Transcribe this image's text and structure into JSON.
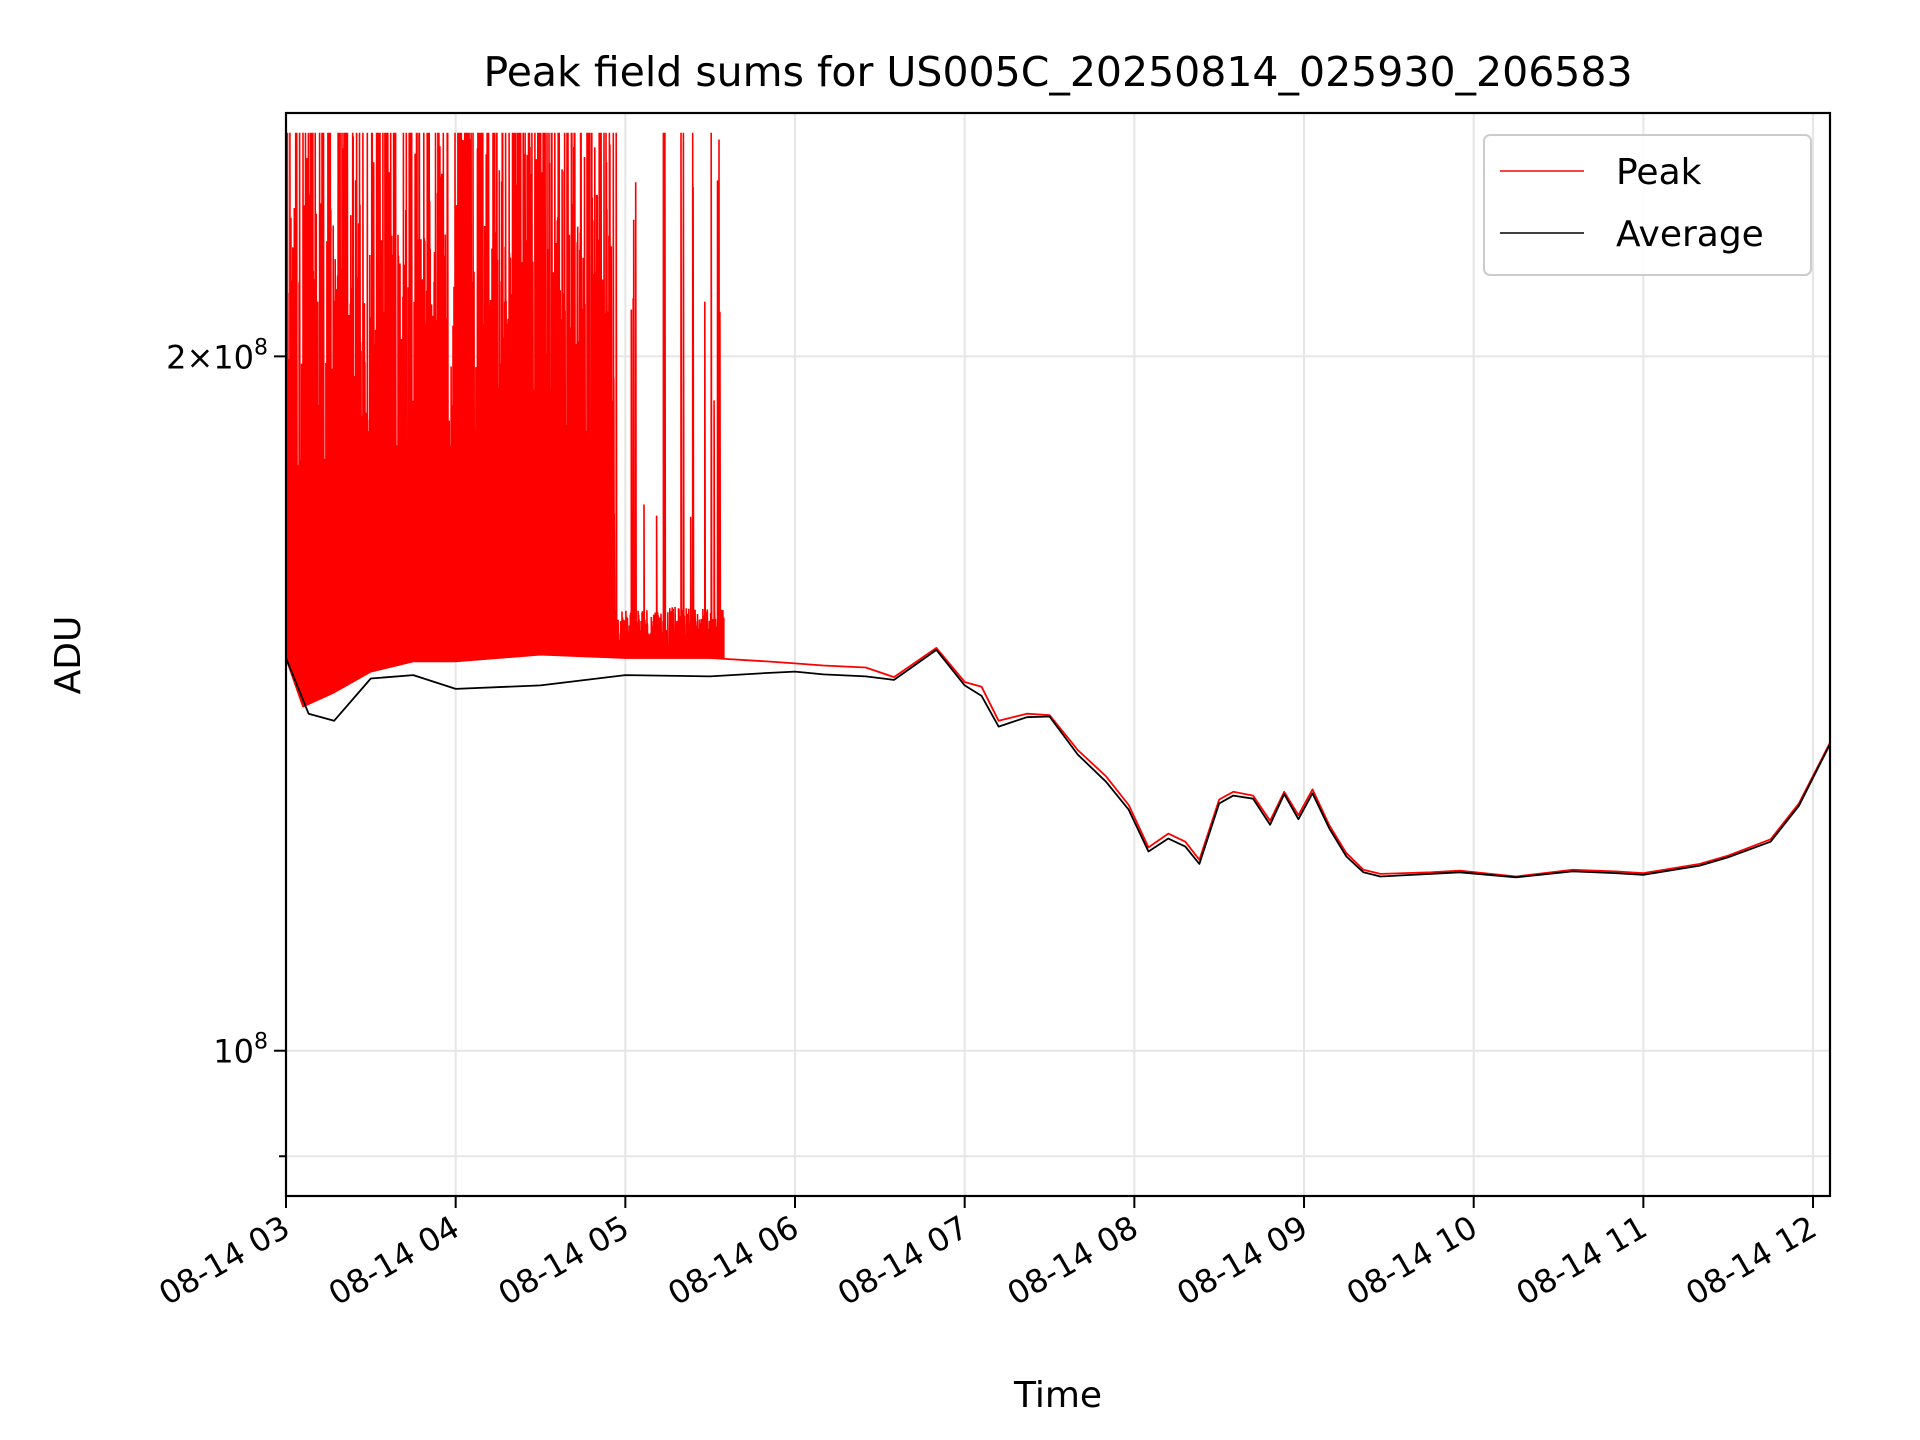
{
  "chart_data": {
    "type": "line",
    "title": "Peak field sums for US005C_20250814_025930_206583",
    "xlabel": "Time",
    "ylabel": "ADU",
    "yscale": "log",
    "grid": true,
    "legend_position": "top-right",
    "xlim": [
      "2025-08-14 03:00",
      "2025-08-14 12:06"
    ],
    "ylim": [
      86500000,
      255000000
    ],
    "x_ticks": [
      "2025-08-14 03:00",
      "2025-08-14 04:00",
      "2025-08-14 05:00",
      "2025-08-14 06:00",
      "2025-08-14 07:00",
      "2025-08-14 08:00",
      "2025-08-14 09:00",
      "2025-08-14 10:00",
      "2025-08-14 11:00",
      "2025-08-14 12:00"
    ],
    "x_tick_labels": [
      "08-14 03",
      "08-14 04",
      "08-14 05",
      "08-14 06",
      "08-14 07",
      "08-14 08",
      "08-14 09",
      "08-14 10",
      "08-14 11",
      "08-14 12"
    ],
    "y_major_ticks": [
      {
        "value": 100000000,
        "mantissa": "",
        "base": "10",
        "exp": "8"
      },
      {
        "value": 200000000,
        "mantissa": "2",
        "base": "10",
        "exp": "8"
      }
    ],
    "y_minor_ticks": [
      90000000
    ],
    "colors": {
      "Peak": "#ff0000",
      "Average": "#000000",
      "grid": "#e6e6e6"
    },
    "series": [
      {
        "name": "Peak",
        "x": [
          "2025-08-14 03:00",
          "2025-08-14 03:06",
          "2025-08-14 03:17",
          "2025-08-14 03:30",
          "2025-08-14 03:45",
          "2025-08-14 04:00",
          "2025-08-14 04:30",
          "2025-08-14 05:00",
          "2025-08-14 05:30",
          "2025-08-14 05:50",
          "2025-08-14 06:00",
          "2025-08-14 06:10",
          "2025-08-14 06:25",
          "2025-08-14 06:35",
          "2025-08-14 06:50",
          "2025-08-14 07:00",
          "2025-08-14 07:06",
          "2025-08-14 07:12",
          "2025-08-14 07:22",
          "2025-08-14 07:30",
          "2025-08-14 07:40",
          "2025-08-14 07:50",
          "2025-08-14 07:58",
          "2025-08-14 08:05",
          "2025-08-14 08:12",
          "2025-08-14 08:18",
          "2025-08-14 08:23",
          "2025-08-14 08:30",
          "2025-08-14 08:35",
          "2025-08-14 08:42",
          "2025-08-14 08:48",
          "2025-08-14 08:53",
          "2025-08-14 08:58",
          "2025-08-14 09:03",
          "2025-08-14 09:09",
          "2025-08-14 09:15",
          "2025-08-14 09:21",
          "2025-08-14 09:27",
          "2025-08-14 09:45",
          "2025-08-14 09:55",
          "2025-08-14 10:15",
          "2025-08-14 10:35",
          "2025-08-14 10:50",
          "2025-08-14 11:00",
          "2025-08-14 11:20",
          "2025-08-14 11:30",
          "2025-08-14 11:45",
          "2025-08-14 11:55",
          "2025-08-14 12:06"
        ],
        "values": [
          148000000,
          141000000,
          143000000,
          146000000,
          147500000,
          147500000,
          148500000,
          148000000,
          148000000,
          147500000,
          147200000,
          146900000,
          146600000,
          145200000,
          149500000,
          144500000,
          143800000,
          139000000,
          140000000,
          139800000,
          135000000,
          131500000,
          127800000,
          122500000,
          124200000,
          123200000,
          121000000,
          128500000,
          129500000,
          129000000,
          125800000,
          129500000,
          126500000,
          129800000,
          125200000,
          121800000,
          119800000,
          119300000,
          119500000,
          119700000,
          119000000,
          119800000,
          119600000,
          119400000,
          120500000,
          121500000,
          123500000,
          128000000,
          136000000
        ]
      },
      {
        "name": "Average",
        "x": [
          "2025-08-14 03:00",
          "2025-08-14 03:08",
          "2025-08-14 03:17",
          "2025-08-14 03:30",
          "2025-08-14 03:45",
          "2025-08-14 04:00",
          "2025-08-14 04:30",
          "2025-08-14 05:00",
          "2025-08-14 05:30",
          "2025-08-14 05:50",
          "2025-08-14 06:00",
          "2025-08-14 06:10",
          "2025-08-14 06:25",
          "2025-08-14 06:35",
          "2025-08-14 06:50",
          "2025-08-14 07:00",
          "2025-08-14 07:06",
          "2025-08-14 07:12",
          "2025-08-14 07:22",
          "2025-08-14 07:30",
          "2025-08-14 07:40",
          "2025-08-14 07:50",
          "2025-08-14 07:58",
          "2025-08-14 08:05",
          "2025-08-14 08:12",
          "2025-08-14 08:18",
          "2025-08-14 08:23",
          "2025-08-14 08:30",
          "2025-08-14 08:35",
          "2025-08-14 08:42",
          "2025-08-14 08:48",
          "2025-08-14 08:53",
          "2025-08-14 08:58",
          "2025-08-14 09:03",
          "2025-08-14 09:09",
          "2025-08-14 09:15",
          "2025-08-14 09:21",
          "2025-08-14 09:27",
          "2025-08-14 09:45",
          "2025-08-14 09:55",
          "2025-08-14 10:15",
          "2025-08-14 10:35",
          "2025-08-14 10:50",
          "2025-08-14 11:00",
          "2025-08-14 11:20",
          "2025-08-14 11:30",
          "2025-08-14 11:45",
          "2025-08-14 11:55",
          "2025-08-14 12:06"
        ],
        "values": [
          148000000,
          140000000,
          139000000,
          145000000,
          145500000,
          143500000,
          144000000,
          145500000,
          145300000,
          145800000,
          146000000,
          145600000,
          145300000,
          144800000,
          149200000,
          144000000,
          142500000,
          138200000,
          139500000,
          139600000,
          134400000,
          130800000,
          127200000,
          122000000,
          123600000,
          122600000,
          120500000,
          128000000,
          129000000,
          128600000,
          125300000,
          129200000,
          126000000,
          129300000,
          124800000,
          121400000,
          119500000,
          119000000,
          119300000,
          119500000,
          118900000,
          119600000,
          119400000,
          119200000,
          120300000,
          121300000,
          123200000,
          127700000,
          135800000
        ]
      }
    ]
  },
  "peak_spikes": {
    "x_range": [
      "2025-08-14 03:00",
      "2025-08-14 05:35"
    ],
    "max_values": [
      168000000,
      250000000
    ]
  }
}
